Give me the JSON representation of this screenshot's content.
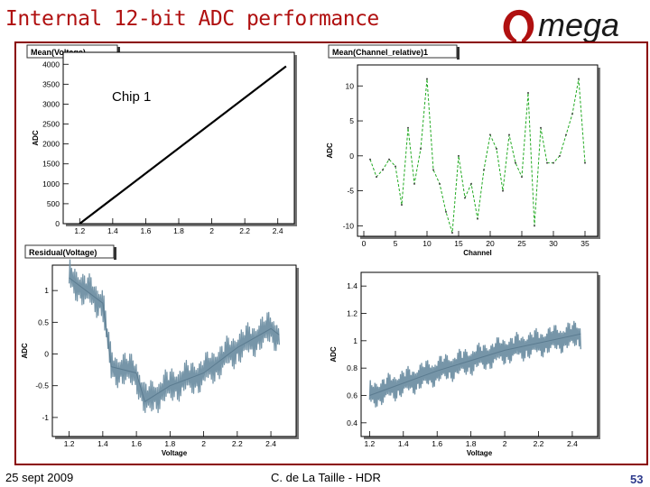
{
  "slide": {
    "title": "Internal 12-bit ADC performance",
    "footer_date": "25 sept 2009",
    "footer_author": "C. de La Taille - HDR",
    "page_number": "53",
    "logo_text": "mega",
    "accent_color": "#b01010"
  },
  "annotations": {
    "chip_label": "Chip 1"
  },
  "chart_data": [
    {
      "type": "line",
      "title": "Mean(Voltage)",
      "xlabel": "",
      "ylabel": "ADC",
      "x_ticks": [
        "1.2",
        "1.4",
        "1.6",
        "1.8",
        "2",
        "2.2",
        "2.4"
      ],
      "y_ticks": [
        "0",
        "500",
        "1000",
        "1500",
        "2000",
        "2500",
        "3000",
        "3500",
        "4000"
      ],
      "xlim": [
        1.1,
        2.5
      ],
      "ylim": [
        0,
        4300
      ],
      "series": [
        {
          "x": [
            1.2,
            2.45
          ],
          "y": [
            0,
            3950
          ]
        }
      ],
      "color": "#000000"
    },
    {
      "type": "line",
      "title": "Mean(Channel_relative)1",
      "xlabel": "Channel",
      "ylabel": "ADC",
      "x_ticks": [
        "0",
        "5",
        "10",
        "15",
        "20",
        "25",
        "30",
        "35"
      ],
      "y_ticks": [
        "-10",
        "-5",
        "0",
        "5",
        "10"
      ],
      "xlim": [
        -1,
        37
      ],
      "ylim": [
        -11.5,
        13
      ],
      "series": [
        {
          "x": [
            1,
            2,
            3,
            4,
            5,
            6,
            7,
            8,
            9,
            10,
            11,
            12,
            13,
            14,
            15,
            16,
            17,
            18,
            19,
            20,
            21,
            22,
            23,
            24,
            25,
            26,
            27,
            28,
            29,
            30,
            31,
            32,
            33,
            34,
            35
          ],
          "y": [
            -0.5,
            -3,
            -2,
            -0.5,
            -1.5,
            -7,
            4,
            -4,
            1,
            11,
            -2,
            -4,
            -8,
            -11,
            0,
            -6,
            -4,
            -9,
            -2,
            3,
            1,
            -5,
            3,
            -1,
            -3,
            9,
            -10,
            4,
            -1,
            -1,
            0,
            3,
            6,
            11,
            -1
          ]
        }
      ],
      "color": "#22aa22"
    },
    {
      "type": "line",
      "title": "Residual(Voltage)",
      "xlabel": "Voltage",
      "ylabel": "ADC",
      "x_ticks": [
        "1.2",
        "1.4",
        "1.6",
        "1.8",
        "2",
        "2.2",
        "2.4"
      ],
      "y_ticks": [
        "-1",
        "-0.5",
        "0",
        "0.5",
        "1"
      ],
      "xlim": [
        1.1,
        2.55
      ],
      "ylim": [
        -1.3,
        1.4
      ],
      "series": [
        {
          "x": [
            1.2,
            1.4,
            1.45,
            1.6,
            1.65,
            1.8,
            2.0,
            2.2,
            2.4,
            2.45
          ],
          "y": [
            1.2,
            0.8,
            -0.2,
            -0.3,
            -0.75,
            -0.5,
            -0.3,
            0.1,
            0.4,
            0.3
          ]
        }
      ],
      "color": "#6f8fa3"
    },
    {
      "type": "line",
      "title": "",
      "xlabel": "Voltage",
      "ylabel": "ADC",
      "x_ticks": [
        "1.2",
        "1.4",
        "1.6",
        "1.8",
        "2",
        "2.2",
        "2.4"
      ],
      "y_ticks": [
        "0.4",
        "0.6",
        "0.8",
        "1",
        "1.2",
        "1.4"
      ],
      "xlim": [
        1.15,
        2.55
      ],
      "ylim": [
        0.3,
        1.5
      ],
      "series": [
        {
          "x": [
            1.2,
            1.6,
            2.0,
            2.45
          ],
          "y": [
            0.6,
            0.78,
            0.93,
            1.05
          ]
        }
      ],
      "color": "#6f8fa3"
    }
  ]
}
